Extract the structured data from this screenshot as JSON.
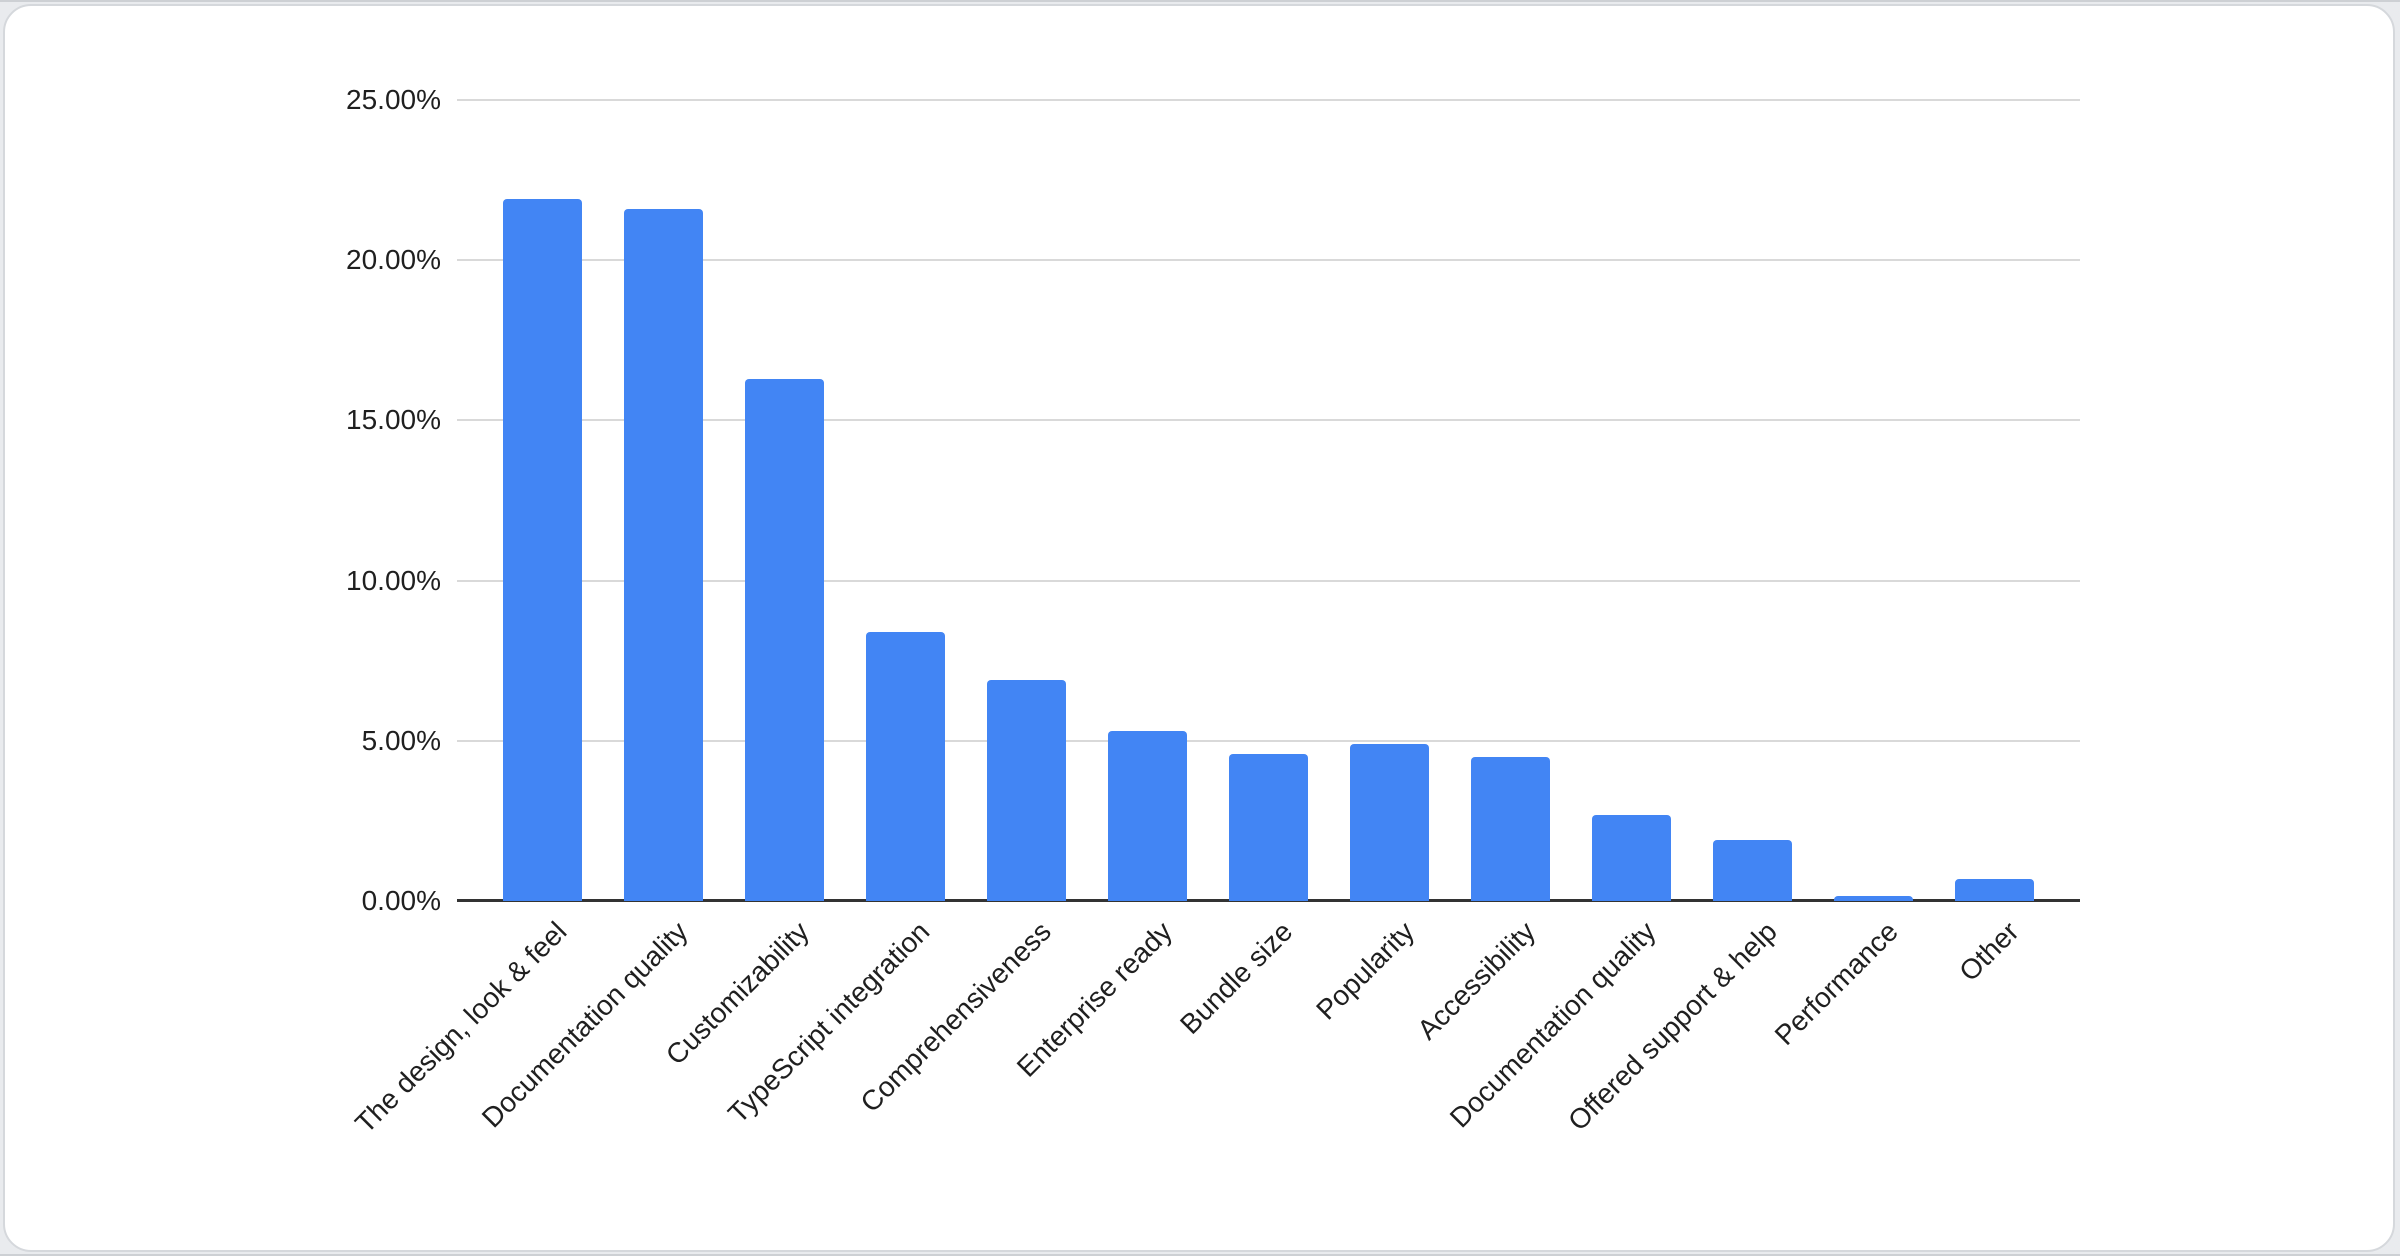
{
  "page": {
    "kind": "chart-card-screenshot"
  },
  "chart_data": {
    "type": "bar",
    "title": "",
    "xlabel": "",
    "ylabel": "",
    "categories": [
      "The design, look & feel",
      "Documentation quality",
      "Customizability",
      "TypeScript integration",
      "Comprehensiveness",
      "Enterprise ready",
      "Bundle size",
      "Popularity",
      "Accessibility",
      "Documentation quality",
      "Offered support & help",
      "Performance",
      "Other"
    ],
    "values": [
      21.9,
      21.6,
      16.3,
      8.4,
      6.9,
      5.3,
      4.6,
      4.9,
      4.5,
      2.7,
      1.9,
      0.15,
      0.7
    ],
    "value_suffix": "%",
    "ylim": [
      0,
      25
    ],
    "y_tick_step": 5,
    "y_tick_labels": [
      "0.00%",
      "5.00%",
      "10.00%",
      "15.00%",
      "20.00%",
      "25.00%"
    ],
    "grid": true,
    "legend": "none",
    "bar_color": "#4285f4"
  },
  "style": {
    "bar_color": "#4285f4",
    "gridline_color": "#d9d9d9",
    "axis_line_color": "#333333",
    "label_color": "#1f1f1f",
    "card_background": "#ffffff",
    "card_border_color": "#d5d8dc",
    "page_background": "#e9ebee"
  }
}
